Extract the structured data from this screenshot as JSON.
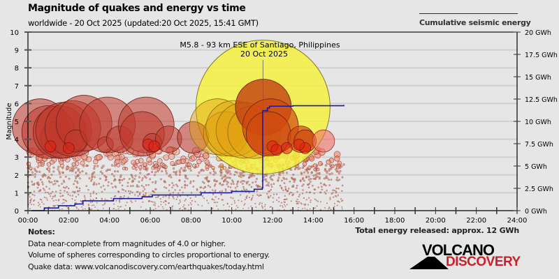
{
  "header": {
    "title": "Magnitude of quakes and energy vs time",
    "subtitle": "worldwide - 20 Oct 2025 (updated:20 Oct 2025, 15:41 GMT)"
  },
  "legend": {
    "label": "Cumulative seismic energy",
    "line_color": "#1a1aa0"
  },
  "annotation": {
    "line1": "M5.8 - 93 km ESE of Santiago, Philippines",
    "line2": "20 Oct 2025"
  },
  "footer": {
    "notes_title": "Notes:",
    "notes": [
      "Data near-complete from magnitudes of 4.0 or higher.",
      "Volume of spheres corresponding to circles proportional to energy.",
      "Quake data: www.volcanodiscovery.com/earthquakes/today.html"
    ],
    "total_energy": "Total energy released: approx. 12 GWh"
  },
  "logo": {
    "line1": "VOLCANO",
    "line2": "DISCOVERY",
    "accent": "#c8202a"
  },
  "chart_data": {
    "type": "scatter",
    "title": "Magnitude of quakes and energy vs time",
    "xlabel": "",
    "ylabel": "Magnitude",
    "y2label": "Cumulative seismic energy",
    "xlim_hours": [
      0,
      24
    ],
    "ylim": [
      0,
      10
    ],
    "y2lim_gwh": [
      0,
      20
    ],
    "grid": true,
    "legend_position": "top-right",
    "x_ticks": [
      "00:00",
      "02:00",
      "04:00",
      "06:00",
      "08:00",
      "10:00",
      "12:00",
      "14:00",
      "16:00",
      "18:00",
      "20:00",
      "22:00",
      "24:00"
    ],
    "y_ticks": [
      "0",
      "1",
      "2",
      "3",
      "4",
      "5",
      "6",
      "7",
      "8",
      "9",
      "10"
    ],
    "y2_ticks": [
      "0 GWh",
      "2.5 GWh",
      "5 GWh",
      "7.5 GWh",
      "10 GWh",
      "12.5 GWh",
      "15 GWh",
      "17.5 GWh",
      "20 GWh"
    ],
    "colors": {
      "old_quake": "#c0392b",
      "recent_quake": "#ff6a1a",
      "latest_quake": "#f0e020",
      "energy_line": "#1a1aa0"
    },
    "highlight_quake": {
      "time_h": 11.55,
      "magnitude": 5.8,
      "label": "M5.8 - 93 km ESE of Santiago, Philippines"
    },
    "large_quakes": [
      {
        "t": 0.6,
        "m": 4.7,
        "age": "old"
      },
      {
        "t": 1.0,
        "m": 4.4,
        "age": "old"
      },
      {
        "t": 1.4,
        "m": 4.1,
        "age": "old"
      },
      {
        "t": 1.55,
        "m": 4.4,
        "age": "old"
      },
      {
        "t": 1.75,
        "m": 4.5,
        "age": "old"
      },
      {
        "t": 2.2,
        "m": 4.6,
        "age": "old"
      },
      {
        "t": 2.75,
        "m": 4.9,
        "age": "old"
      },
      {
        "t": 2.35,
        "m": 3.9,
        "age": "old"
      },
      {
        "t": 3.9,
        "m": 4.8,
        "age": "old"
      },
      {
        "t": 3.8,
        "m": 3.7,
        "age": "old"
      },
      {
        "t": 4.5,
        "m": 4.0,
        "age": "old"
      },
      {
        "t": 5.8,
        "m": 4.8,
        "age": "old"
      },
      {
        "t": 5.6,
        "m": 4.3,
        "age": "old"
      },
      {
        "t": 6.1,
        "m": 3.8,
        "age": "old"
      },
      {
        "t": 6.9,
        "m": 4.0,
        "age": "old"
      },
      {
        "t": 8.1,
        "m": 4.1,
        "age": "old"
      },
      {
        "t": 9.3,
        "m": 4.7,
        "age": "mid"
      },
      {
        "t": 9.7,
        "m": 4.3,
        "age": "mid"
      },
      {
        "t": 10.1,
        "m": 4.6,
        "age": "mid"
      },
      {
        "t": 10.6,
        "m": 4.5,
        "age": "mid"
      },
      {
        "t": 11.1,
        "m": 4.4,
        "age": "mid"
      },
      {
        "t": 11.55,
        "m": 5.8,
        "age": "latest"
      },
      {
        "t": 11.9,
        "m": 4.7,
        "age": "recent"
      },
      {
        "t": 11.8,
        "m": 4.3,
        "age": "recent"
      },
      {
        "t": 13.4,
        "m": 4.0,
        "age": "recent"
      },
      {
        "t": 13.6,
        "m": 3.9,
        "age": "recent"
      },
      {
        "t": 14.5,
        "m": 3.9,
        "age": "newest"
      }
    ],
    "energy_curve": [
      {
        "t": 0.0,
        "gwh": 0.0
      },
      {
        "t": 0.8,
        "gwh": 0.3
      },
      {
        "t": 1.5,
        "gwh": 0.55
      },
      {
        "t": 2.3,
        "gwh": 0.75
      },
      {
        "t": 2.7,
        "gwh": 1.1
      },
      {
        "t": 4.2,
        "gwh": 1.35
      },
      {
        "t": 5.6,
        "gwh": 1.55
      },
      {
        "t": 6.1,
        "gwh": 1.75
      },
      {
        "t": 8.5,
        "gwh": 2.0
      },
      {
        "t": 10.0,
        "gwh": 2.15
      },
      {
        "t": 11.1,
        "gwh": 2.4
      },
      {
        "t": 11.5,
        "gwh": 2.55
      },
      {
        "t": 11.52,
        "gwh": 11.2
      },
      {
        "t": 11.75,
        "gwh": 11.5
      },
      {
        "t": 11.85,
        "gwh": 11.7
      },
      {
        "t": 13.0,
        "gwh": 11.75
      },
      {
        "t": 15.5,
        "gwh": 11.85
      }
    ]
  }
}
